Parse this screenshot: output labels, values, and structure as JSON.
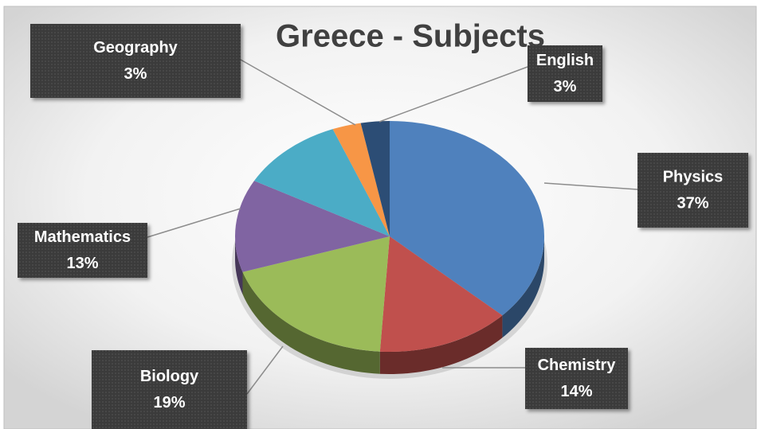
{
  "chart_data": {
    "type": "pie",
    "title": "Greece - Subjects",
    "categories": [
      "Physics",
      "Chemistry",
      "Biology",
      "Mathematics",
      null,
      "Geography",
      "English"
    ],
    "values": [
      37,
      14,
      19,
      13,
      11,
      3,
      3
    ],
    "value_labels": [
      "37%",
      "14%",
      "19%",
      "13%",
      null,
      "3%",
      "3%"
    ],
    "colors": [
      "#4f81bd",
      "#c0504d",
      "#9bbb59",
      "#8064a2",
      "#4bacc6",
      "#f79646",
      "#2c4d75"
    ]
  }
}
